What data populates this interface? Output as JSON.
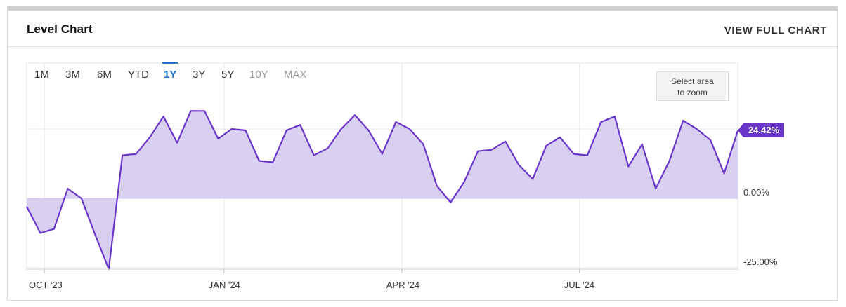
{
  "header": {
    "title": "Level Chart",
    "view_full_label": "VIEW FULL CHART"
  },
  "ranges": [
    {
      "label": "1M",
      "state": "enabled"
    },
    {
      "label": "3M",
      "state": "enabled"
    },
    {
      "label": "6M",
      "state": "enabled"
    },
    {
      "label": "YTD",
      "state": "enabled"
    },
    {
      "label": "1Y",
      "state": "active"
    },
    {
      "label": "3Y",
      "state": "enabled"
    },
    {
      "label": "5Y",
      "state": "enabled"
    },
    {
      "label": "10Y",
      "state": "disabled"
    },
    {
      "label": "MAX",
      "state": "disabled"
    }
  ],
  "zoom": {
    "line1": "Select area",
    "line2": "to zoom"
  },
  "last_value_label": "24.42%",
  "colors": {
    "line": "#6a36c9",
    "fill": "#d6ccf0",
    "active": "#1a73c9"
  },
  "chart_data": {
    "type": "area",
    "title": "",
    "xlabel": "",
    "ylabel": "",
    "ylim": [
      -26,
      48
    ],
    "grid": true,
    "x_ticks": [
      {
        "label": "OCT '23",
        "date": "2023-10-01"
      },
      {
        "label": "JAN '24",
        "date": "2024-01-01"
      },
      {
        "label": "APR '24",
        "date": "2024-04-01"
      },
      {
        "label": "JUL '24",
        "date": "2024-07-01"
      }
    ],
    "y_ticks": [
      {
        "label": "0.00%",
        "value": 0
      },
      {
        "label": "-25.00%",
        "value": -25
      }
    ],
    "series": [
      {
        "points": [
          {
            "x": "2023-09-22",
            "y": -3.0
          },
          {
            "x": "2023-09-29",
            "y": -12.5
          },
          {
            "x": "2023-10-06",
            "y": -11.0
          },
          {
            "x": "2023-10-13",
            "y": 3.5
          },
          {
            "x": "2023-10-20",
            "y": 0.0
          },
          {
            "x": "2023-10-27",
            "y": -13.0
          },
          {
            "x": "2023-11-03",
            "y": -25.5
          },
          {
            "x": "2023-11-10",
            "y": 15.5
          },
          {
            "x": "2023-11-17",
            "y": 16.0
          },
          {
            "x": "2023-11-24",
            "y": 22.0
          },
          {
            "x": "2023-12-01",
            "y": 29.5
          },
          {
            "x": "2023-12-08",
            "y": 20.0
          },
          {
            "x": "2023-12-15",
            "y": 31.5
          },
          {
            "x": "2023-12-22",
            "y": 31.5
          },
          {
            "x": "2023-12-29",
            "y": 21.5
          },
          {
            "x": "2024-01-05",
            "y": 25.0
          },
          {
            "x": "2024-01-12",
            "y": 24.5
          },
          {
            "x": "2024-01-19",
            "y": 13.5
          },
          {
            "x": "2024-01-26",
            "y": 13.0
          },
          {
            "x": "2024-02-02",
            "y": 24.5
          },
          {
            "x": "2024-02-09",
            "y": 26.5
          },
          {
            "x": "2024-02-16",
            "y": 15.5
          },
          {
            "x": "2024-02-23",
            "y": 18.0
          },
          {
            "x": "2024-03-01",
            "y": 25.0
          },
          {
            "x": "2024-03-08",
            "y": 30.0
          },
          {
            "x": "2024-03-15",
            "y": 24.5
          },
          {
            "x": "2024-03-22",
            "y": 16.0
          },
          {
            "x": "2024-03-29",
            "y": 27.5
          },
          {
            "x": "2024-04-05",
            "y": 25.0
          },
          {
            "x": "2024-04-12",
            "y": 19.5
          },
          {
            "x": "2024-04-19",
            "y": 4.5
          },
          {
            "x": "2024-04-26",
            "y": -1.5
          },
          {
            "x": "2024-05-03",
            "y": 6.0
          },
          {
            "x": "2024-05-10",
            "y": 17.0
          },
          {
            "x": "2024-05-17",
            "y": 17.5
          },
          {
            "x": "2024-05-24",
            "y": 20.5
          },
          {
            "x": "2024-05-31",
            "y": 12.0
          },
          {
            "x": "2024-06-07",
            "y": 7.0
          },
          {
            "x": "2024-06-14",
            "y": 19.0
          },
          {
            "x": "2024-06-21",
            "y": 22.0
          },
          {
            "x": "2024-06-28",
            "y": 16.0
          },
          {
            "x": "2024-07-05",
            "y": 15.5
          },
          {
            "x": "2024-07-12",
            "y": 27.5
          },
          {
            "x": "2024-07-19",
            "y": 29.5
          },
          {
            "x": "2024-07-26",
            "y": 11.5
          },
          {
            "x": "2024-08-02",
            "y": 19.5
          },
          {
            "x": "2024-08-09",
            "y": 3.5
          },
          {
            "x": "2024-08-16",
            "y": 13.5
          },
          {
            "x": "2024-08-23",
            "y": 28.0
          },
          {
            "x": "2024-08-30",
            "y": 25.0
          },
          {
            "x": "2024-09-06",
            "y": 21.0
          },
          {
            "x": "2024-09-13",
            "y": 9.0
          },
          {
            "x": "2024-09-20",
            "y": 24.42
          }
        ]
      }
    ]
  }
}
